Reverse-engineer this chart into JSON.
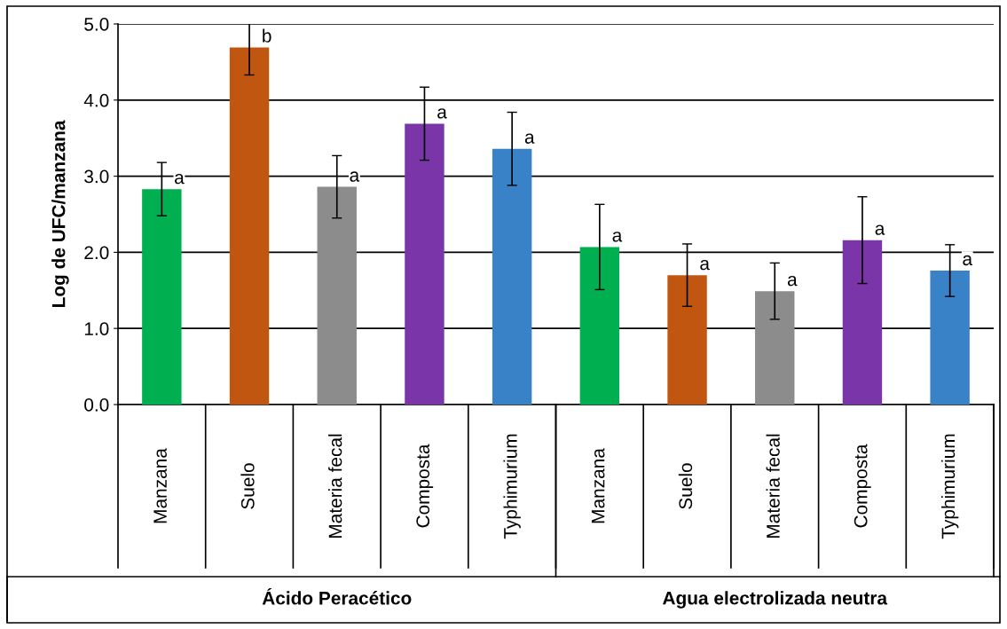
{
  "chart_data": {
    "type": "bar",
    "ylabel": "Log de UFC/manzana",
    "categories": [
      "Manzana",
      "Suelo",
      "Materia fecal",
      "Composta",
      "Typhimurium",
      "Manzana",
      "Suelo",
      "Materia fecal",
      "Composta",
      "Typhimurium"
    ],
    "values": [
      2.83,
      4.69,
      2.86,
      3.69,
      3.36,
      2.07,
      1.7,
      1.49,
      2.16,
      1.76
    ],
    "errors": [
      0.35,
      0.36,
      0.41,
      0.48,
      0.48,
      0.56,
      0.41,
      0.37,
      0.57,
      0.34
    ],
    "value_labels": [
      "a",
      "b",
      "a",
      "a",
      "a",
      "a",
      "a",
      "a",
      "a",
      "a"
    ],
    "colors": [
      "#00b050",
      "#c0560f",
      "#8c8c8c",
      "#7a35a8",
      "#3a82c8",
      "#00b050",
      "#c0560f",
      "#8c8c8c",
      "#7a35a8",
      "#3a82c8"
    ],
    "ylim": [
      0,
      5
    ],
    "yticks": [
      {
        "value": 0,
        "label": "0.0"
      },
      {
        "value": 1,
        "label": "1.0"
      },
      {
        "value": 2,
        "label": "2.0"
      },
      {
        "value": 3,
        "label": "3.0"
      },
      {
        "value": 4,
        "label": "4.0"
      },
      {
        "value": 5,
        "label": "5.0"
      }
    ],
    "grid": "y",
    "annotations": [
      "Ácido Peracético",
      "Agua electrolizada neutra"
    ]
  }
}
